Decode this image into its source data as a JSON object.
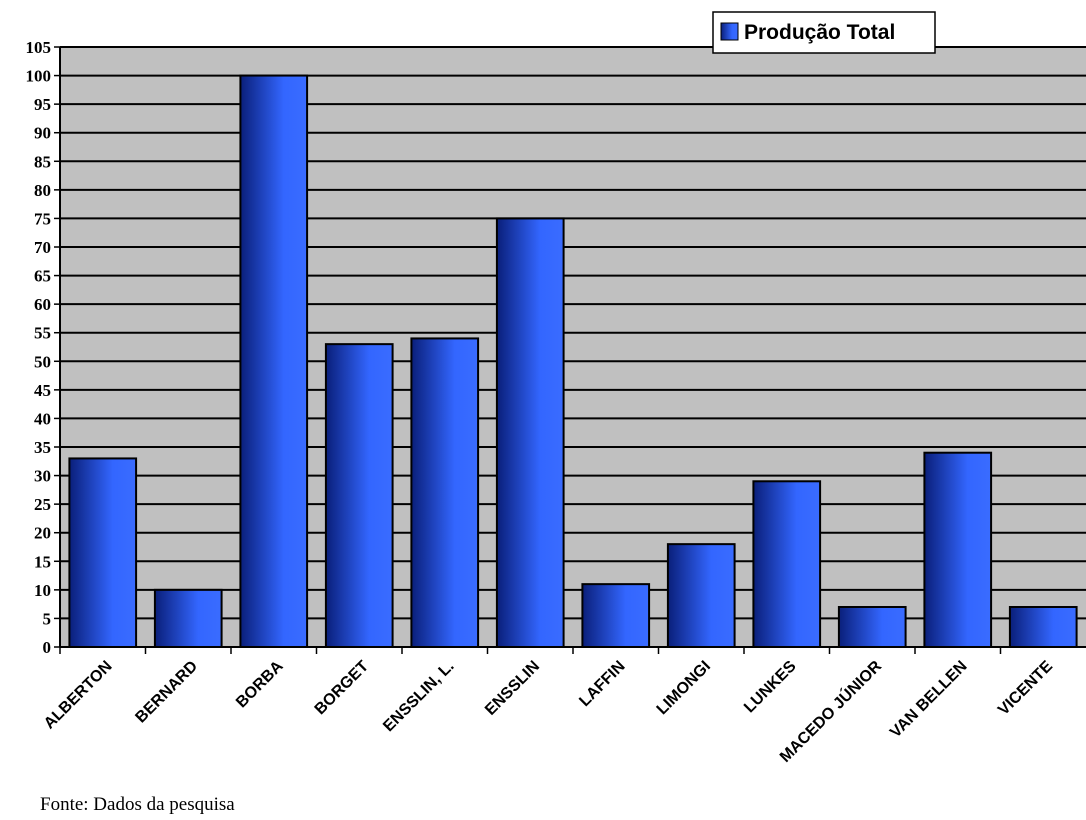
{
  "chart_data": {
    "type": "bar",
    "categories": [
      "ALBERTON",
      "BERNARD",
      "BORBA",
      "BORGET",
      "ENSSLIN, L.",
      "ENSSLIN",
      "LAFFIN",
      "LIMONGI",
      "LUNKES",
      "MACEDO JÚNIOR",
      "VAN BELLEN",
      "VICENTE"
    ],
    "series": [
      {
        "name": "Produção Total",
        "values": [
          33,
          10,
          100,
          53,
          54,
          75,
          11,
          18,
          29,
          7,
          34,
          7
        ]
      }
    ],
    "ylim": [
      0,
      105
    ],
    "ytick_step": 5,
    "grid": true,
    "legend_position": "top-right",
    "colors": {
      "bar": "#3366ff",
      "bar_dark": "#0a1f7a",
      "plot_bg": "#c0c0c0"
    }
  },
  "source_note": "Fonte: Dados da pesquisa"
}
